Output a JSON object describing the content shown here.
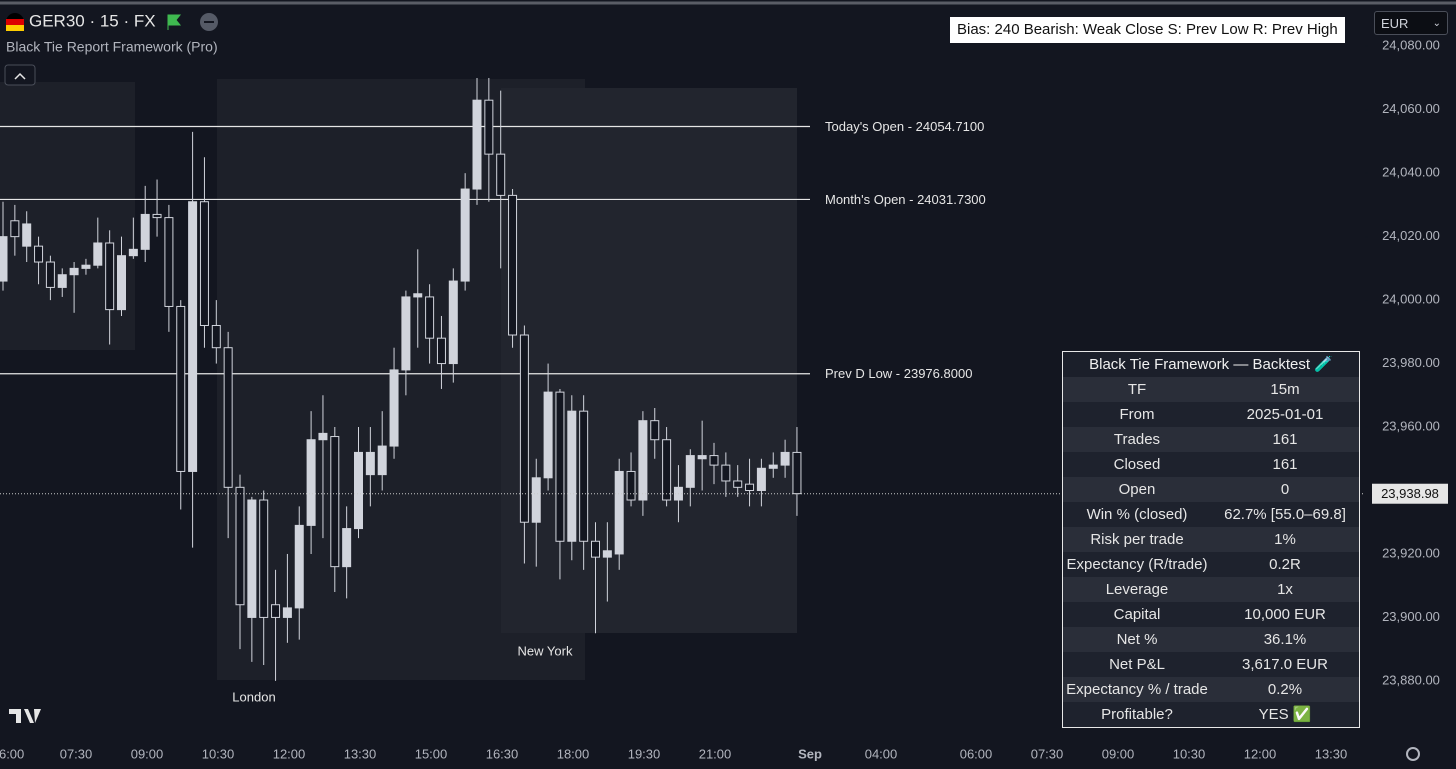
{
  "header": {
    "symbol": "GER30 · 15 · FX",
    "indicator": "Black Tie Report Framework (Pro)",
    "currency": "EUR",
    "bias": "Bias: 240  Bearish: Weak Close  S: Prev Low  R: Prev High"
  },
  "chart_data": {
    "type": "candlestick",
    "open": [
      24006,
      24025,
      24017,
      24017,
      24012,
      24004,
      24008,
      24010,
      24011,
      24018,
      23997,
      24014,
      24016,
      24027,
      24026,
      23998,
      23946,
      24031,
      23992,
      23985,
      23941,
      23900,
      23937,
      23904,
      23900,
      23903,
      23929,
      23956,
      23957,
      23916,
      23928,
      23945,
      23945,
      23954,
      23978,
      24001,
      24001,
      23988,
      23980,
      24006,
      24035,
      24063,
      24046,
      24033,
      23989,
      23930,
      23944,
      23971,
      23924,
      23965,
      23924,
      23919,
      23920,
      23946,
      23937,
      23962,
      23956,
      23937,
      23941,
      23950,
      23951,
      23948,
      23943,
      23942,
      23940,
      23947,
      23948,
      23952
    ],
    "high": [
      24031,
      24030,
      24028,
      24020,
      24014,
      24010,
      24012,
      24013,
      24026,
      24022,
      24020,
      24026,
      24036,
      24038,
      24030,
      24000,
      24053,
      24045,
      24000,
      23990,
      23945,
      23938,
      23940,
      23915,
      23920,
      23935,
      23965,
      23970,
      23960,
      23935,
      23960,
      23960,
      23965,
      23985,
      24003,
      24016,
      24005,
      23995,
      24010,
      24040,
      24070,
      24070,
      24066,
      24035,
      23992,
      23950,
      23980,
      23972,
      23970,
      23970,
      23930,
      23930,
      23950,
      23952,
      23965,
      23966,
      23960,
      23948,
      23953,
      23962,
      23955,
      23952,
      23948,
      23950,
      23950,
      23952,
      23956,
      23960
    ],
    "low": [
      24003,
      24014,
      24012,
      24005,
      24000,
      24001,
      23996,
      24008,
      24010,
      23986,
      23995,
      24013,
      24012,
      24020,
      23990,
      23934,
      23922,
      23985,
      23980,
      23925,
      23890,
      23886,
      23885,
      23880,
      23892,
      23893,
      23920,
      23925,
      23908,
      23906,
      23925,
      23935,
      23940,
      23950,
      23970,
      23985,
      23980,
      23972,
      23974,
      24003,
      24030,
      24031,
      24010,
      23985,
      23917,
      23916,
      23940,
      23912,
      23918,
      23915,
      23895,
      23905,
      23915,
      23935,
      23932,
      23950,
      23935,
      23930,
      23935,
      23940,
      23942,
      23938,
      23938,
      23935,
      23935,
      23944,
      23944,
      23932
    ],
    "close": [
      24020,
      24020,
      24024,
      24012,
      24004,
      24008,
      24010,
      24011,
      24018,
      23997,
      24014,
      24016,
      24027,
      24026,
      23998,
      23946,
      24031,
      23992,
      23985,
      23941,
      23904,
      23937,
      23900,
      23900,
      23903,
      23929,
      23956,
      23958,
      23916,
      23928,
      23952,
      23952,
      23954,
      23978,
      24001,
      24002,
      23988,
      23980,
      24006,
      24035,
      24063,
      24046,
      24033,
      23989,
      23930,
      23944,
      23971,
      23924,
      23965,
      23924,
      23919,
      23921,
      23946,
      23937,
      23962,
      23956,
      23937,
      23941,
      23951,
      23951,
      23948,
      23943,
      23941,
      23940,
      23947,
      23948,
      23952,
      23939
    ],
    "ylim": [
      23862,
      24093
    ],
    "yticks": [
      {
        "value": 24080,
        "label": "24,080.00"
      },
      {
        "value": 24060,
        "label": "24,060.00"
      },
      {
        "value": 24040,
        "label": "24,040.00"
      },
      {
        "value": 24020,
        "label": "24,020.00"
      },
      {
        "value": 24000,
        "label": "24,000.00"
      },
      {
        "value": 23980,
        "label": "23,980.00"
      },
      {
        "value": 23960,
        "label": "23,960.00"
      },
      {
        "value": 23940,
        "label": "23,940.00"
      },
      {
        "value": 23920,
        "label": "23,920.00"
      },
      {
        "value": 23900,
        "label": "23,900.00"
      },
      {
        "value": 23880,
        "label": "23,880.00"
      }
    ],
    "xticks": [
      "06:00",
      "07:30",
      "09:00",
      "10:30",
      "12:00",
      "13:30",
      "15:00",
      "16:30",
      "18:00",
      "19:30",
      "21:00",
      "Sep",
      "04:00",
      "06:00",
      "07:30",
      "09:00",
      "10:30",
      "12:00",
      "13:30"
    ],
    "levels": [
      {
        "value": 24054.71,
        "label": "Today's Open - 24054.7100"
      },
      {
        "value": 24031.73,
        "label": "Month's Open  - 24031.7300"
      },
      {
        "value": 23976.8,
        "label": "Prev D Low  - 23976.8000"
      }
    ],
    "last_price": {
      "value": 23938.98,
      "label": "23,938.98"
    },
    "sessions": [
      "London",
      "New York"
    ]
  },
  "backtest": {
    "title": "Black Tie Framework — Backtest 🧪",
    "rows": [
      [
        "TF",
        "15m"
      ],
      [
        "From",
        "2025-01-01"
      ],
      [
        "Trades",
        "161"
      ],
      [
        "Closed",
        "161"
      ],
      [
        "Open",
        "0"
      ],
      [
        "Win % (closed)",
        "62.7% [55.0–69.8]"
      ],
      [
        "Risk per trade",
        "1%"
      ],
      [
        "Expectancy (R/trade)",
        "0.2R"
      ],
      [
        "Leverage",
        "1x"
      ],
      [
        "Capital",
        "10,000 EUR"
      ],
      [
        "Net %",
        "36.1%"
      ],
      [
        "Net P&L",
        "3,617.0 EUR"
      ],
      [
        "Expectancy % / trade",
        "0.2%"
      ],
      [
        "Profitable?",
        "YES ✅"
      ]
    ]
  }
}
